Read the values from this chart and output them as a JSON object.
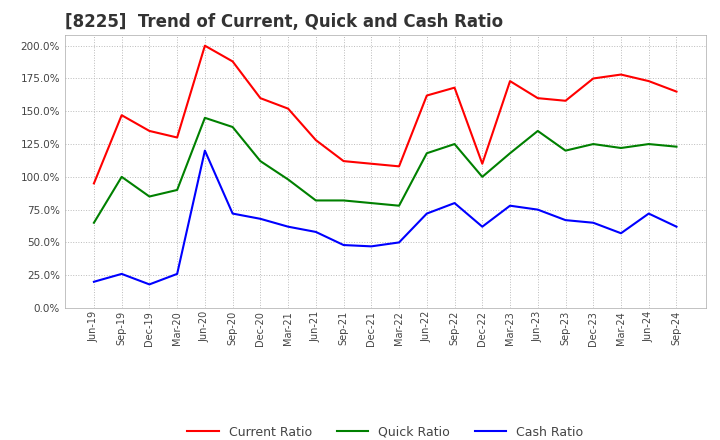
{
  "title": "[8225]  Trend of Current, Quick and Cash Ratio",
  "title_fontsize": 12,
  "background_color": "#ffffff",
  "plot_background": "#ffffff",
  "grid_color": "#bbbbbb",
  "ylim": [
    0,
    208
  ],
  "yticks": [
    0,
    25,
    50,
    75,
    100,
    125,
    150,
    175,
    200
  ],
  "x_labels": [
    "Jun-19",
    "Sep-19",
    "Dec-19",
    "Mar-20",
    "Jun-20",
    "Sep-20",
    "Dec-20",
    "Mar-21",
    "Jun-21",
    "Sep-21",
    "Dec-21",
    "Mar-22",
    "Jun-22",
    "Sep-22",
    "Dec-22",
    "Mar-23",
    "Jun-23",
    "Sep-23",
    "Dec-23",
    "Mar-24",
    "Jun-24",
    "Sep-24"
  ],
  "current_ratio": [
    95,
    147,
    135,
    130,
    200,
    188,
    160,
    152,
    128,
    112,
    110,
    108,
    162,
    168,
    110,
    173,
    160,
    158,
    175,
    178,
    173,
    165
  ],
  "quick_ratio": [
    65,
    100,
    85,
    90,
    145,
    138,
    112,
    98,
    82,
    82,
    80,
    78,
    118,
    125,
    100,
    118,
    135,
    120,
    125,
    122,
    125,
    123
  ],
  "cash_ratio": [
    20,
    26,
    18,
    26,
    120,
    72,
    68,
    62,
    58,
    48,
    47,
    50,
    72,
    80,
    62,
    78,
    75,
    67,
    65,
    57,
    72,
    62
  ],
  "current_color": "#ff0000",
  "quick_color": "#008000",
  "cash_color": "#0000ff",
  "line_width": 1.5,
  "legend_labels": [
    "Current Ratio",
    "Quick Ratio",
    "Cash Ratio"
  ]
}
